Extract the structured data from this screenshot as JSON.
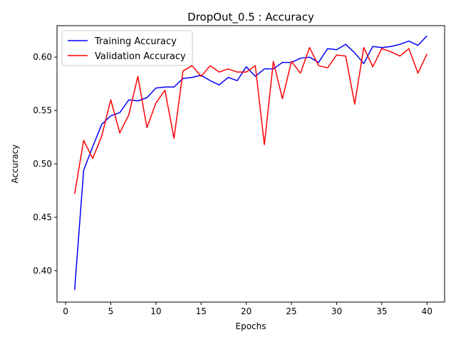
{
  "chart_data": {
    "type": "line",
    "title": "DropOut_0.5 : Accuracy",
    "xlabel": "Epochs",
    "ylabel": "Accuracy",
    "xlim": [
      -0.95,
      41.95
    ],
    "ylim": [
      0.3705,
      0.6295
    ],
    "xticks": [
      0,
      5,
      10,
      15,
      20,
      25,
      30,
      35,
      40
    ],
    "yticks": [
      0.4,
      0.45,
      0.5,
      0.55,
      0.6
    ],
    "ytick_labels": [
      "0.40",
      "0.45",
      "0.50",
      "0.55",
      "0.60"
    ],
    "grid": false,
    "legend_position": "upper-left",
    "x": [
      1,
      2,
      3,
      4,
      5,
      6,
      7,
      8,
      9,
      10,
      11,
      12,
      13,
      14,
      15,
      16,
      17,
      18,
      19,
      20,
      21,
      22,
      23,
      24,
      25,
      26,
      27,
      28,
      29,
      30,
      31,
      32,
      33,
      34,
      35,
      36,
      37,
      38,
      39,
      40
    ],
    "series": [
      {
        "name": "Training Accuracy",
        "color": "#0000ff",
        "values": [
          0.382,
          0.494,
          0.516,
          0.537,
          0.545,
          0.548,
          0.56,
          0.559,
          0.562,
          0.571,
          0.572,
          0.572,
          0.58,
          0.581,
          0.583,
          0.578,
          0.574,
          0.581,
          0.578,
          0.591,
          0.582,
          0.589,
          0.589,
          0.595,
          0.595,
          0.599,
          0.6,
          0.595,
          0.608,
          0.607,
          0.612,
          0.604,
          0.594,
          0.61,
          0.609,
          0.61,
          0.612,
          0.615,
          0.611,
          0.62
        ]
      },
      {
        "name": "Validation Accuracy",
        "color": "#ff0000",
        "values": [
          0.472,
          0.522,
          0.505,
          0.526,
          0.56,
          0.529,
          0.546,
          0.582,
          0.534,
          0.557,
          0.569,
          0.524,
          0.587,
          0.592,
          0.582,
          0.592,
          0.586,
          0.589,
          0.586,
          0.586,
          0.592,
          0.518,
          0.596,
          0.561,
          0.596,
          0.585,
          0.609,
          0.592,
          0.59,
          0.602,
          0.601,
          0.556,
          0.609,
          0.591,
          0.608,
          0.605,
          0.601,
          0.608,
          0.585,
          0.603
        ]
      }
    ]
  }
}
